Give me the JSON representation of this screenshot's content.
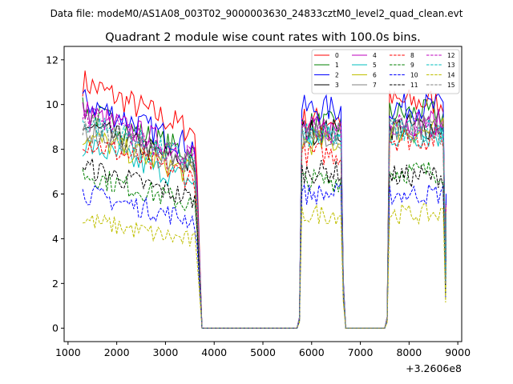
{
  "chart_data": {
    "type": "line",
    "suptitle": "Data file: modeM0/AS1A08_003T02_9000003630_24833cztM0_level2_quad_clean.evt",
    "title": "Quadrant 2 module wise count rates with 100.0s bins.",
    "xlabel": "",
    "ylabel": "",
    "x_offset_label": "+3.2606e8",
    "xlim": [
      920,
      9080
    ],
    "ylim": [
      -0.6,
      12.6
    ],
    "xticks": [
      1000,
      2000,
      3000,
      4000,
      5000,
      6000,
      7000,
      8000,
      9000
    ],
    "xtick_labels": [
      "1000",
      "2000",
      "3000",
      "4000",
      "5000",
      "6000",
      "7000",
      "8000",
      "9000"
    ],
    "yticks": [
      0,
      2,
      4,
      6,
      8,
      10,
      12
    ],
    "ytick_labels": [
      "0",
      "2",
      "4",
      "6",
      "8",
      "10",
      "12"
    ],
    "legend": {
      "position": "top-right",
      "columns": 4
    },
    "segments": [
      {
        "x_start": 1300,
        "x_end": 3600
      },
      {
        "x_start": 5800,
        "x_end": 6600
      },
      {
        "x_start": 7600,
        "x_end": 8700
      }
    ],
    "series": [
      {
        "name": "0",
        "color": "#ff0000",
        "dash": "solid",
        "levels": [
          10.2,
          9.3,
          10.1
        ]
      },
      {
        "name": "1",
        "color": "#008000",
        "dash": "solid",
        "levels": [
          9.0,
          9.1,
          9.6
        ]
      },
      {
        "name": "2",
        "color": "#0000ff",
        "dash": "solid",
        "levels": [
          9.4,
          9.8,
          9.9
        ]
      },
      {
        "name": "3",
        "color": "#000000",
        "dash": "solid",
        "levels": [
          8.4,
          8.8,
          9.0
        ]
      },
      {
        "name": "4",
        "color": "#bf00bf",
        "dash": "solid",
        "levels": [
          9.0,
          8.9,
          9.2
        ]
      },
      {
        "name": "5",
        "color": "#00bfbf",
        "dash": "solid",
        "levels": [
          7.6,
          8.5,
          8.6
        ]
      },
      {
        "name": "6",
        "color": "#bfbf00",
        "dash": "solid",
        "levels": [
          8.0,
          8.3,
          8.8
        ]
      },
      {
        "name": "7",
        "color": "#808080",
        "dash": "solid",
        "levels": [
          8.3,
          8.6,
          9.0
        ]
      },
      {
        "name": "8",
        "color": "#ff0000",
        "dash": "dashed",
        "levels": [
          7.8,
          7.8,
          8.5
        ]
      },
      {
        "name": "9",
        "color": "#008000",
        "dash": "dashed",
        "levels": [
          6.4,
          6.6,
          7.0
        ]
      },
      {
        "name": "10",
        "color": "#0000ff",
        "dash": "dashed",
        "levels": [
          5.6,
          6.0,
          6.0
        ]
      },
      {
        "name": "11",
        "color": "#000000",
        "dash": "dashed",
        "levels": [
          6.7,
          7.0,
          6.8
        ]
      },
      {
        "name": "12",
        "color": "#bf00bf",
        "dash": "dashed",
        "levels": [
          8.8,
          8.8,
          9.0
        ]
      },
      {
        "name": "13",
        "color": "#00bfbf",
        "dash": "dashed",
        "levels": [
          8.6,
          8.6,
          8.9
        ]
      },
      {
        "name": "14",
        "color": "#bfbf00",
        "dash": "dashed",
        "levels": [
          4.5,
          5.1,
          5.1
        ]
      },
      {
        "name": "15",
        "color": "#808080",
        "dash": "dashed",
        "levels": [
          8.5,
          8.6,
          8.8
        ]
      }
    ]
  }
}
